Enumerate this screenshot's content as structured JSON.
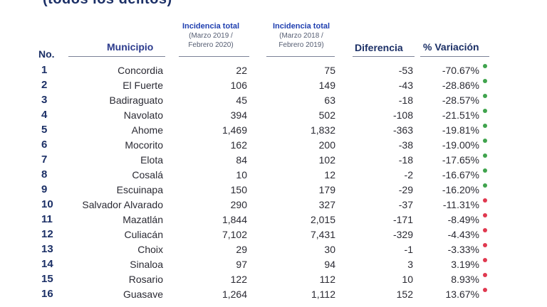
{
  "title_fragment": "(todos los delitos)",
  "headers": {
    "no": "No.",
    "municipio": "Municipio",
    "col_a_title": "Incidencia total",
    "col_a_sub1": "(Marzo 2019 /",
    "col_a_sub2": "Febrero 2020)",
    "col_b_title": "Incidencia total",
    "col_b_sub1": "(Marzo 2018 /",
    "col_b_sub2": "Febrero 2019)",
    "diferencia": "Diferencia",
    "variacion": "% Variación"
  },
  "colors": {
    "decrease": "#3fa34d",
    "increase": "#e0384f"
  },
  "rows": [
    {
      "no": "1",
      "municipio": "Concordia",
      "a": "22",
      "b": "75",
      "dif": "-53",
      "var": "-70.67%",
      "status": "decrease"
    },
    {
      "no": "2",
      "municipio": "El Fuerte",
      "a": "106",
      "b": "149",
      "dif": "-43",
      "var": "-28.86%",
      "status": "decrease"
    },
    {
      "no": "3",
      "municipio": "Badiraguato",
      "a": "45",
      "b": "63",
      "dif": "-18",
      "var": "-28.57%",
      "status": "decrease"
    },
    {
      "no": "4",
      "municipio": "Navolato",
      "a": "394",
      "b": "502",
      "dif": "-108",
      "var": "-21.51%",
      "status": "decrease"
    },
    {
      "no": "5",
      "municipio": "Ahome",
      "a": "1,469",
      "b": "1,832",
      "dif": "-363",
      "var": "-19.81%",
      "status": "decrease"
    },
    {
      "no": "6",
      "municipio": "Mocorito",
      "a": "162",
      "b": "200",
      "dif": "-38",
      "var": "-19.00%",
      "status": "decrease"
    },
    {
      "no": "7",
      "municipio": "Elota",
      "a": "84",
      "b": "102",
      "dif": "-18",
      "var": "-17.65%",
      "status": "decrease"
    },
    {
      "no": "8",
      "municipio": "Cosalá",
      "a": "10",
      "b": "12",
      "dif": "-2",
      "var": "-16.67%",
      "status": "decrease"
    },
    {
      "no": "9",
      "municipio": "Escuinapa",
      "a": "150",
      "b": "179",
      "dif": "-29",
      "var": "-16.20%",
      "status": "decrease"
    },
    {
      "no": "10",
      "municipio": "Salvador Alvarado",
      "a": "290",
      "b": "327",
      "dif": "-37",
      "var": "-11.31%",
      "status": "increase"
    },
    {
      "no": "11",
      "municipio": "Mazatlán",
      "a": "1,844",
      "b": "2,015",
      "dif": "-171",
      "var": "-8.49%",
      "status": "increase"
    },
    {
      "no": "12",
      "municipio": "Culiacán",
      "a": "7,102",
      "b": "7,431",
      "dif": "-329",
      "var": "-4.43%",
      "status": "increase"
    },
    {
      "no": "13",
      "municipio": "Choix",
      "a": "29",
      "b": "30",
      "dif": "-1",
      "var": "-3.33%",
      "status": "increase"
    },
    {
      "no": "14",
      "municipio": "Sinaloa",
      "a": "97",
      "b": "94",
      "dif": "3",
      "var": "3.19%",
      "status": "increase"
    },
    {
      "no": "15",
      "municipio": "Rosario",
      "a": "122",
      "b": "112",
      "dif": "10",
      "var": "8.93%",
      "status": "increase"
    },
    {
      "no": "16",
      "municipio": "Guasave",
      "a": "1,264",
      "b": "1,112",
      "dif": "152",
      "var": "13.67%",
      "status": "increase"
    }
  ]
}
